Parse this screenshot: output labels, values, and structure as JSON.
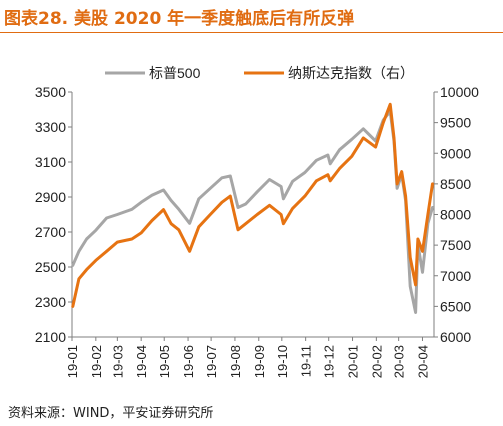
{
  "title": "图表28.  美股 2020 年一季度触底后有所反弹",
  "source": "资料来源：WIND，平安证券研究所",
  "colors": {
    "title": "#e06c12",
    "sp500": "#a6a6a6",
    "nasdaq": "#e67312",
    "watermark": "#e8b9b9"
  },
  "chart_data": {
    "type": "line",
    "grid": false,
    "legend_position": "top",
    "x_ticks": [
      "19-01",
      "19-02",
      "19-03",
      "19-04",
      "19-05",
      "19-06",
      "19-07",
      "19-08",
      "19-09",
      "19-10",
      "19-11",
      "19-12",
      "20-01",
      "20-02",
      "20-03",
      "20-04"
    ],
    "y_left": {
      "ticks": [
        2100,
        2300,
        2500,
        2700,
        2900,
        3100,
        3300,
        3500
      ],
      "range": [
        2100,
        3500
      ]
    },
    "y_right": {
      "ticks": [
        6000,
        6500,
        7000,
        7500,
        8000,
        8500,
        9000,
        9500,
        10000
      ],
      "range": [
        6000,
        10000
      ],
      "label_note": "（右）"
    },
    "series": [
      {
        "name": "标普500",
        "axis": "left",
        "x": [
          "2019-01-02",
          "2019-01-10",
          "2019-01-20",
          "2019-02-01",
          "2019-02-15",
          "2019-03-01",
          "2019-03-20",
          "2019-04-01",
          "2019-04-15",
          "2019-04-30",
          "2019-05-10",
          "2019-05-20",
          "2019-06-03",
          "2019-06-15",
          "2019-06-30",
          "2019-07-15",
          "2019-07-26",
          "2019-08-05",
          "2019-08-15",
          "2019-08-30",
          "2019-09-15",
          "2019-09-30",
          "2019-10-03",
          "2019-10-15",
          "2019-10-31",
          "2019-11-15",
          "2019-11-30",
          "2019-12-03",
          "2019-12-15",
          "2019-12-31",
          "2020-01-15",
          "2020-01-31",
          "2020-02-10",
          "2020-02-19",
          "2020-02-24",
          "2020-02-28",
          "2020-03-05",
          "2020-03-10",
          "2020-03-16",
          "2020-03-23",
          "2020-03-26",
          "2020-04-01",
          "2020-04-08",
          "2020-04-14"
        ],
        "values": [
          2510,
          2590,
          2660,
          2710,
          2780,
          2800,
          2830,
          2870,
          2910,
          2940,
          2880,
          2830,
          2750,
          2890,
          2950,
          3010,
          3020,
          2840,
          2860,
          2930,
          3000,
          2960,
          2890,
          2990,
          3040,
          3110,
          3140,
          3090,
          3170,
          3230,
          3290,
          3220,
          3340,
          3390,
          3220,
          2950,
          3030,
          2880,
          2390,
          2240,
          2630,
          2470,
          2750,
          2840
        ]
      },
      {
        "name": "纳斯达克指数（右）",
        "axis": "right",
        "x": [
          "2019-01-02",
          "2019-01-10",
          "2019-01-20",
          "2019-02-01",
          "2019-02-15",
          "2019-03-01",
          "2019-03-20",
          "2019-04-01",
          "2019-04-15",
          "2019-04-30",
          "2019-05-10",
          "2019-05-20",
          "2019-06-03",
          "2019-06-15",
          "2019-06-30",
          "2019-07-15",
          "2019-07-26",
          "2019-08-05",
          "2019-08-15",
          "2019-08-30",
          "2019-09-15",
          "2019-09-30",
          "2019-10-03",
          "2019-10-15",
          "2019-10-31",
          "2019-11-15",
          "2019-11-30",
          "2019-12-03",
          "2019-12-15",
          "2019-12-31",
          "2020-01-15",
          "2020-01-31",
          "2020-02-10",
          "2020-02-19",
          "2020-02-24",
          "2020-02-28",
          "2020-03-05",
          "2020-03-10",
          "2020-03-16",
          "2020-03-23",
          "2020-03-26",
          "2020-04-01",
          "2020-04-08",
          "2020-04-14"
        ],
        "values": [
          6500,
          6950,
          7100,
          7250,
          7400,
          7550,
          7600,
          7700,
          7900,
          8080,
          7850,
          7750,
          7400,
          7800,
          8000,
          8200,
          8300,
          7750,
          7850,
          8000,
          8150,
          8000,
          7850,
          8100,
          8300,
          8550,
          8650,
          8550,
          8750,
          8950,
          9250,
          9100,
          9500,
          9800,
          9250,
          8500,
          8700,
          8300,
          7300,
          6850,
          7600,
          7400,
          8000,
          8500
        ]
      }
    ]
  }
}
